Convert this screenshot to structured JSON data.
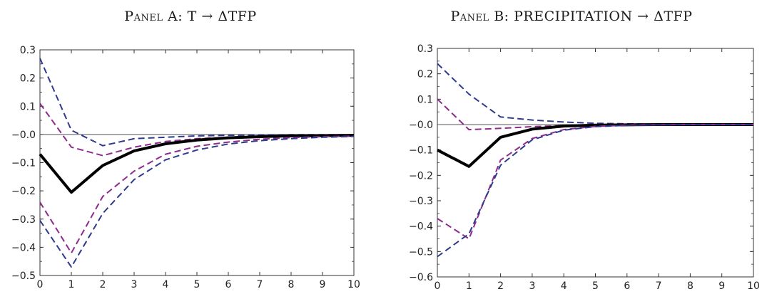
{
  "chart_data": [
    {
      "type": "line",
      "title_prefix": "Panel A:",
      "title_main": "T → ΔTFP",
      "xlabel": "",
      "ylabel": "",
      "xlim": [
        0,
        10
      ],
      "ylim": [
        -0.5,
        0.3
      ],
      "xticks": [
        0,
        1,
        2,
        3,
        4,
        5,
        6,
        7,
        8,
        9,
        10
      ],
      "yticks": [
        0.3,
        0.2,
        0.1,
        0.0,
        -0.1,
        -0.2,
        -0.3,
        -0.4,
        -0.5
      ],
      "ytick_labels": [
        "0.3",
        "0.2",
        "0.1",
        "−0.0",
        "−0.1",
        "−0.2",
        "−0.3",
        "−0.4",
        "−0.5"
      ],
      "x": [
        0,
        1,
        2,
        3,
        4,
        5,
        6,
        7,
        8,
        9,
        10
      ],
      "series": [
        {
          "values": [
            0.27,
            0.015,
            -0.04,
            -0.015,
            -0.01,
            -0.005,
            -0.003,
            -0.002,
            -0.001,
            -0.001,
            -0.001
          ],
          "color": "#2e3a8c",
          "style": "dashed"
        },
        {
          "values": [
            0.11,
            -0.045,
            -0.075,
            -0.045,
            -0.025,
            -0.015,
            -0.01,
            -0.006,
            -0.004,
            -0.003,
            -0.002
          ],
          "color": "#8e2a8c",
          "style": "dashed"
        },
        {
          "values": [
            -0.07,
            -0.205,
            -0.11,
            -0.058,
            -0.033,
            -0.02,
            -0.012,
            -0.008,
            -0.005,
            -0.004,
            -0.003
          ],
          "color": "#000000",
          "style": "solid"
        },
        {
          "values": [
            -0.24,
            -0.42,
            -0.22,
            -0.13,
            -0.07,
            -0.042,
            -0.027,
            -0.017,
            -0.011,
            -0.008,
            -0.006
          ],
          "color": "#8e2a8c",
          "style": "dashed"
        },
        {
          "values": [
            -0.305,
            -0.47,
            -0.28,
            -0.16,
            -0.09,
            -0.055,
            -0.034,
            -0.022,
            -0.015,
            -0.01,
            -0.007
          ],
          "color": "#2e3a8c",
          "style": "dashed"
        }
      ],
      "grid": false
    },
    {
      "type": "line",
      "title_prefix": "Panel B:",
      "title_main": "PRECIPITATION → ΔTFP",
      "xlabel": "",
      "ylabel": "",
      "xlim": [
        0,
        10
      ],
      "ylim": [
        -0.6,
        0.3
      ],
      "xticks": [
        0,
        1,
        2,
        3,
        4,
        5,
        6,
        7,
        8,
        9,
        10
      ],
      "yticks": [
        0.3,
        0.2,
        0.1,
        0.0,
        -0.1,
        -0.2,
        -0.3,
        -0.4,
        -0.5,
        -0.6
      ],
      "ytick_labels": [
        "0.3",
        "0.2",
        "0.1",
        "−0.0",
        "−0.1",
        "−0.2",
        "−0.3",
        "−0.4",
        "−0.5",
        "−0.6"
      ],
      "x": [
        0,
        1,
        2,
        3,
        4,
        5,
        6,
        7,
        8,
        9,
        10
      ],
      "series": [
        {
          "values": [
            0.24,
            0.12,
            0.03,
            0.018,
            0.01,
            0.005,
            0.003,
            0.001,
            0.001,
            0.0,
            0.0
          ],
          "color": "#2e3a8c",
          "style": "dashed"
        },
        {
          "values": [
            0.1,
            -0.02,
            -0.015,
            -0.008,
            -0.004,
            -0.002,
            -0.001,
            0.0,
            0.0,
            0.0,
            0.0
          ],
          "color": "#8e2a8c",
          "style": "dashed"
        },
        {
          "values": [
            -0.1,
            -0.165,
            -0.05,
            -0.018,
            -0.006,
            -0.002,
            -0.001,
            0.0,
            0.0,
            0.0,
            0.0
          ],
          "color": "#000000",
          "style": "solid"
        },
        {
          "values": [
            -0.37,
            -0.45,
            -0.14,
            -0.055,
            -0.02,
            -0.007,
            -0.002,
            -0.001,
            0.0,
            0.0,
            0.0
          ],
          "color": "#8e2a8c",
          "style": "dashed"
        },
        {
          "values": [
            -0.52,
            -0.43,
            -0.16,
            -0.06,
            -0.022,
            -0.008,
            -0.003,
            -0.001,
            0.0,
            0.0,
            0.0
          ],
          "color": "#2e3a8c",
          "style": "dashed"
        }
      ],
      "grid": false
    }
  ]
}
